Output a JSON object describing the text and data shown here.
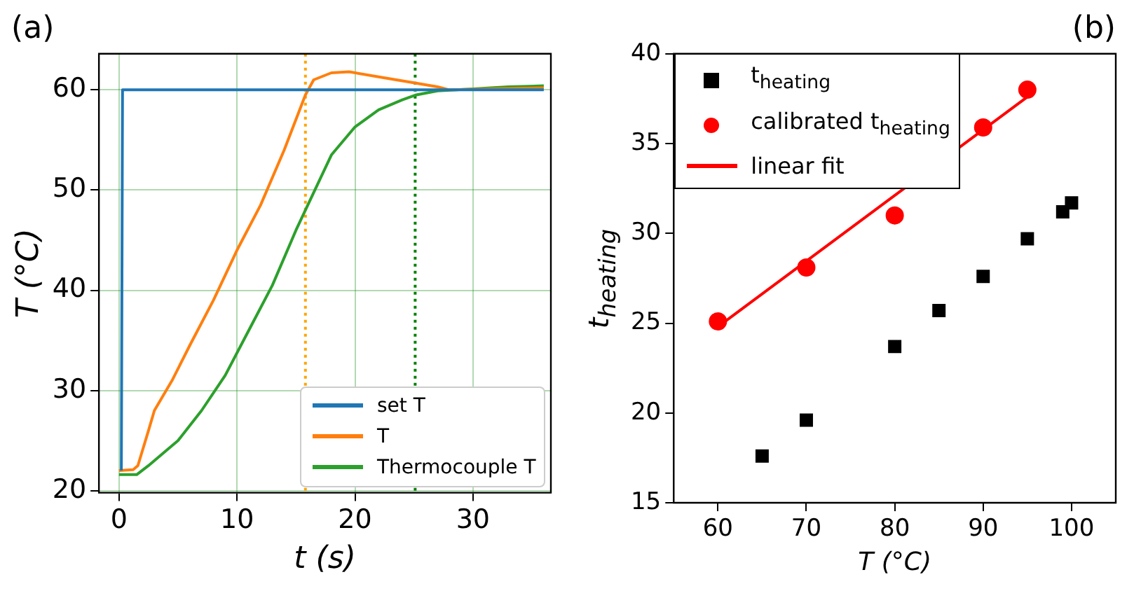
{
  "chart_data": [
    {
      "type": "line",
      "title": "(a)",
      "xlabel": "t (s)",
      "ylabel": "T (°C)",
      "xlim": [
        -1.7,
        36.6
      ],
      "ylim": [
        19.8,
        63.6
      ],
      "xticks": [
        0,
        10,
        20,
        30
      ],
      "yticks": [
        20,
        30,
        40,
        50,
        60
      ],
      "grid": true,
      "legend": "bottom right",
      "marker": "none",
      "line_style": "solid",
      "series": [
        {
          "name": "set T",
          "color": "#1f77b4",
          "x": [
            0.2,
            0.3,
            36
          ],
          "values": [
            22,
            60,
            60
          ]
        },
        {
          "name": "T",
          "color": "#ff7f0e",
          "x": [
            0,
            1.2,
            1.6,
            2.5,
            3,
            4.5,
            6,
            8,
            10,
            12,
            14,
            15.8,
            16.5,
            18,
            19.5,
            22,
            25,
            27,
            28,
            36
          ],
          "values": [
            22,
            22.1,
            22.5,
            26,
            28,
            31,
            34.5,
            39,
            44,
            48.5,
            54,
            59.5,
            61,
            61.7,
            61.8,
            61.3,
            60.7,
            60.3,
            60,
            60.2
          ]
        },
        {
          "name": "Thermocouple T",
          "color": "#2ca02c",
          "x": [
            0,
            1.5,
            2.5,
            4,
            5,
            7,
            9,
            11,
            13,
            15,
            16,
            17,
            18,
            20,
            22,
            24,
            25.2,
            27,
            30,
            33,
            36
          ],
          "values": [
            21.6,
            21.6,
            22.5,
            24,
            25,
            28,
            31.5,
            36,
            40.5,
            46,
            48.5,
            51,
            53.5,
            56.3,
            58,
            59,
            59.5,
            59.9,
            60.1,
            60.3,
            60.4
          ]
        }
      ],
      "ref_lines": [
        {
          "axis": "x",
          "value": 15.8,
          "color": "#ffa500",
          "line_style": "dotted"
        },
        {
          "axis": "x",
          "value": 25.1,
          "color": "#008000",
          "line_style": "dotted"
        }
      ]
    },
    {
      "type": "scatter",
      "title": "(b)",
      "xlabel": "T (°C)",
      "ylabel": "t$_{heating}$",
      "xlim": [
        55,
        105
      ],
      "ylim": [
        15,
        40
      ],
      "xticks": [
        60,
        70,
        80,
        90,
        100
      ],
      "yticks": [
        15,
        20,
        25,
        30,
        35,
        40
      ],
      "grid": false,
      "legend": "top left",
      "series": [
        {
          "name": "t$_{heating}$",
          "color": "#000000",
          "marker": "square",
          "x": [
            65,
            70,
            80,
            85,
            90,
            95,
            99,
            100
          ],
          "values": [
            17.6,
            19.6,
            23.7,
            25.7,
            27.6,
            29.7,
            31.2,
            31.7
          ]
        },
        {
          "name": "calibrated t$_{heating}$",
          "color": "#ff0000",
          "marker": "circle",
          "x": [
            60,
            70,
            80,
            90,
            95
          ],
          "values": [
            25.1,
            28.1,
            31,
            35.9,
            38
          ]
        },
        {
          "name": "linear fit",
          "type": "line",
          "color": "#ff0000",
          "marker": "none",
          "line_style": "solid",
          "x": [
            60,
            95
          ],
          "values": [
            24.8,
            37.6
          ]
        }
      ]
    }
  ]
}
